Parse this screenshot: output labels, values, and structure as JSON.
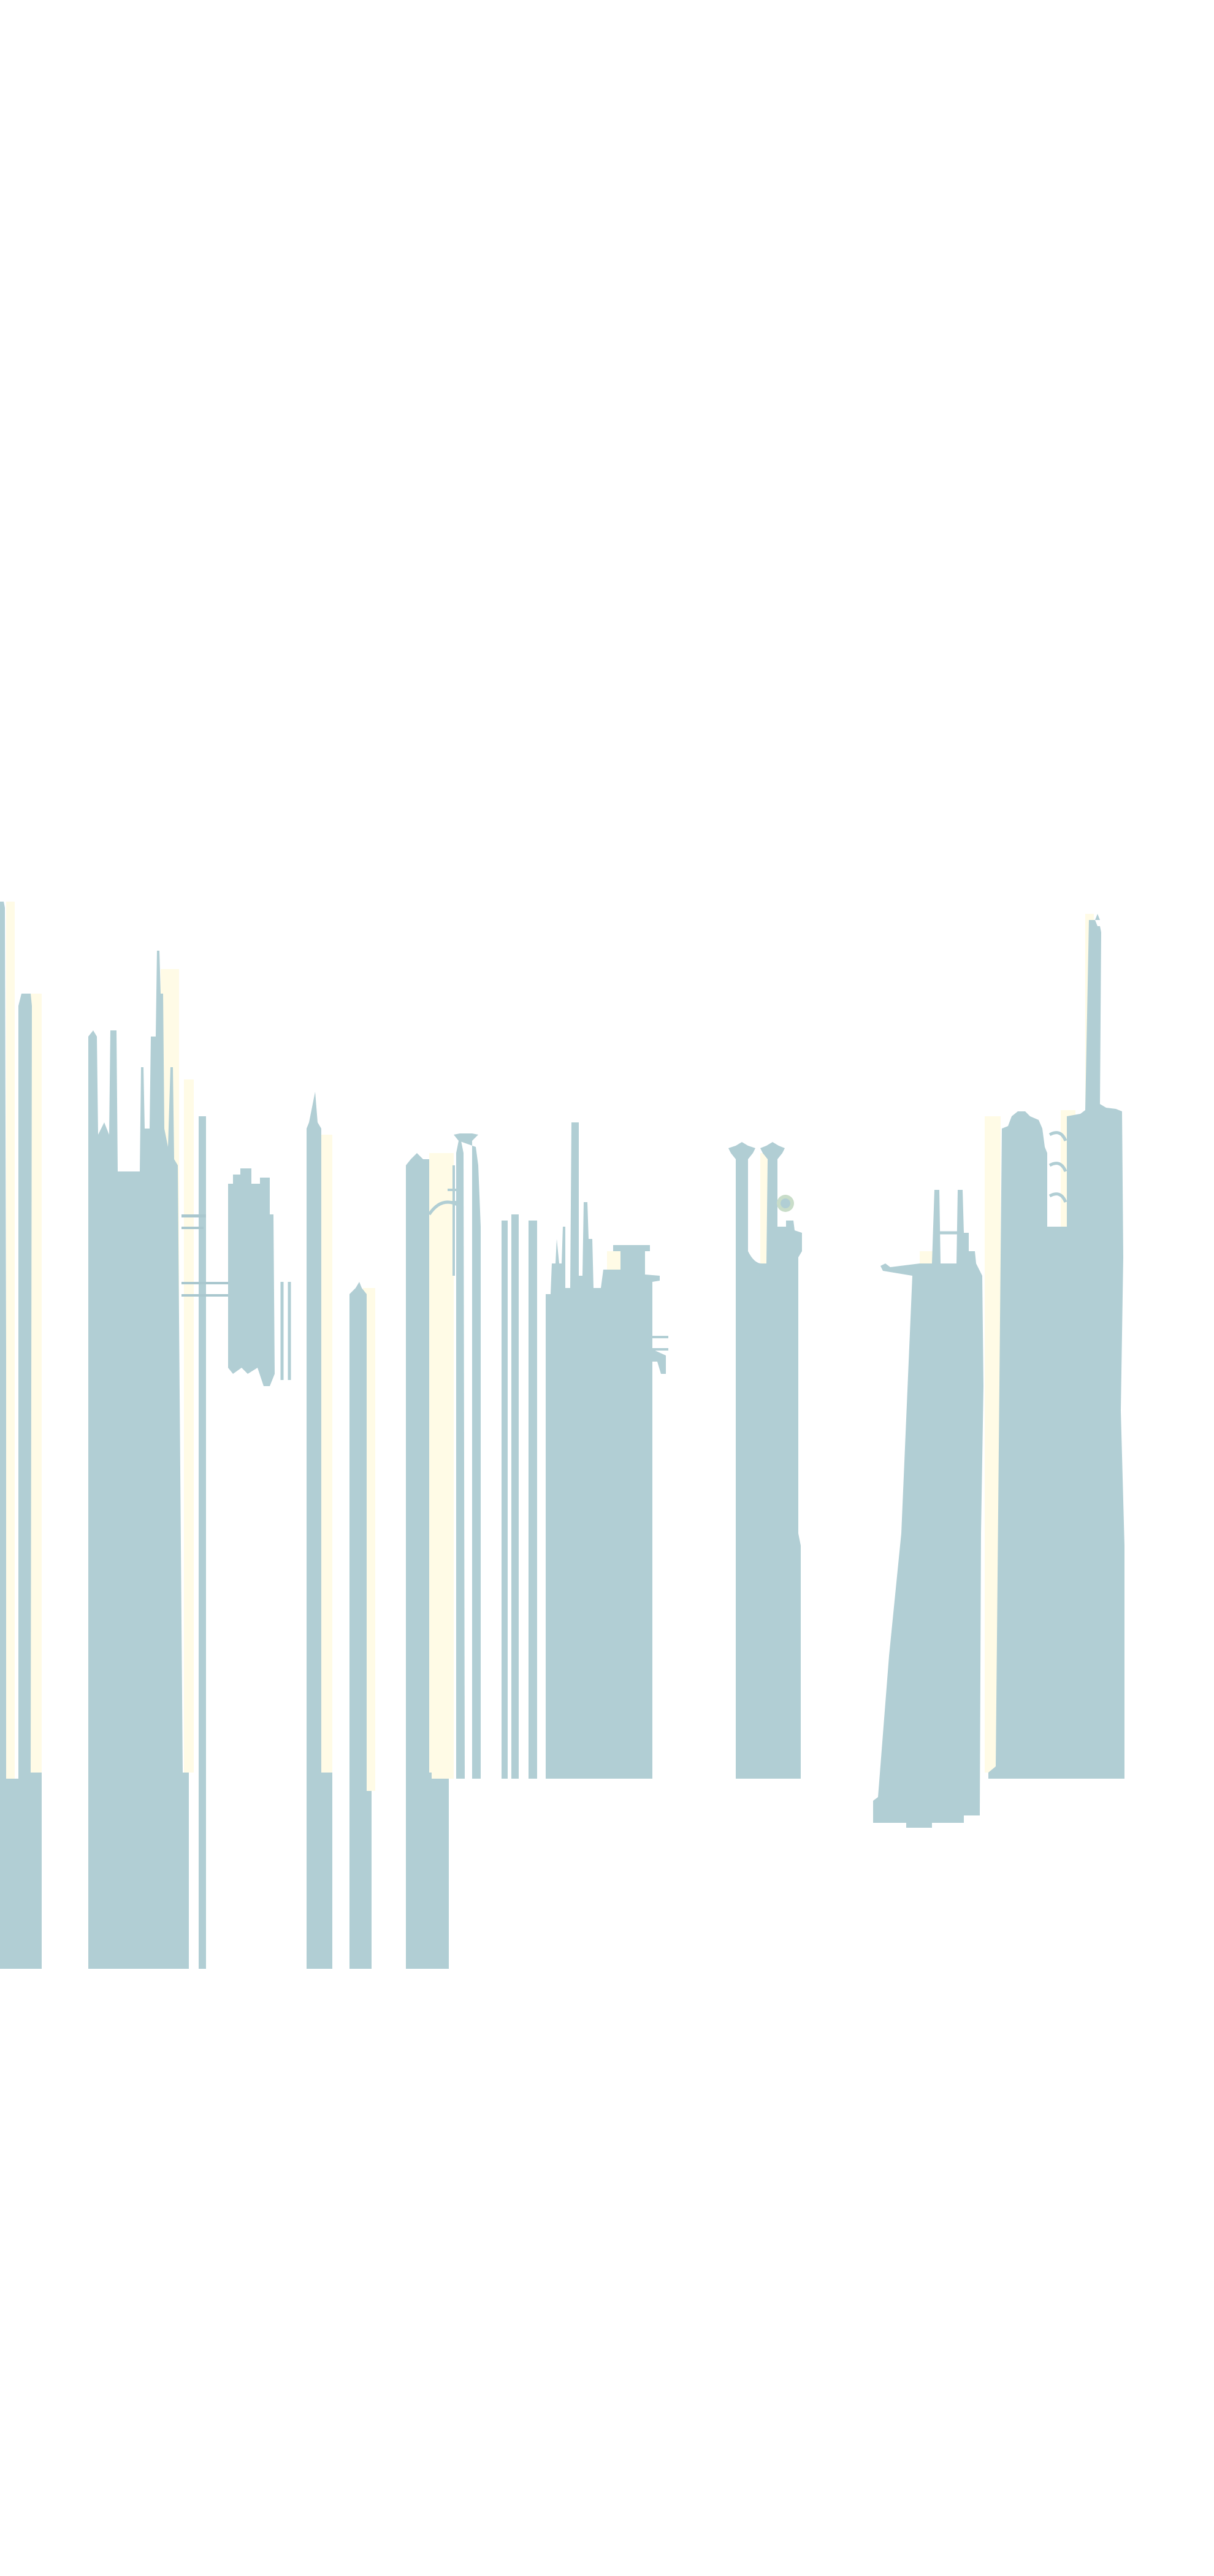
{
  "scene": {
    "colors": {
      "background": "#ffffff",
      "building": "#b1ced4",
      "building_shadow": "#a9c7ce",
      "glow": "#fffbe6"
    },
    "icons": [
      "skyline-illustration",
      "tower-icon",
      "crane-icon",
      "lamp-post-icon"
    ]
  }
}
